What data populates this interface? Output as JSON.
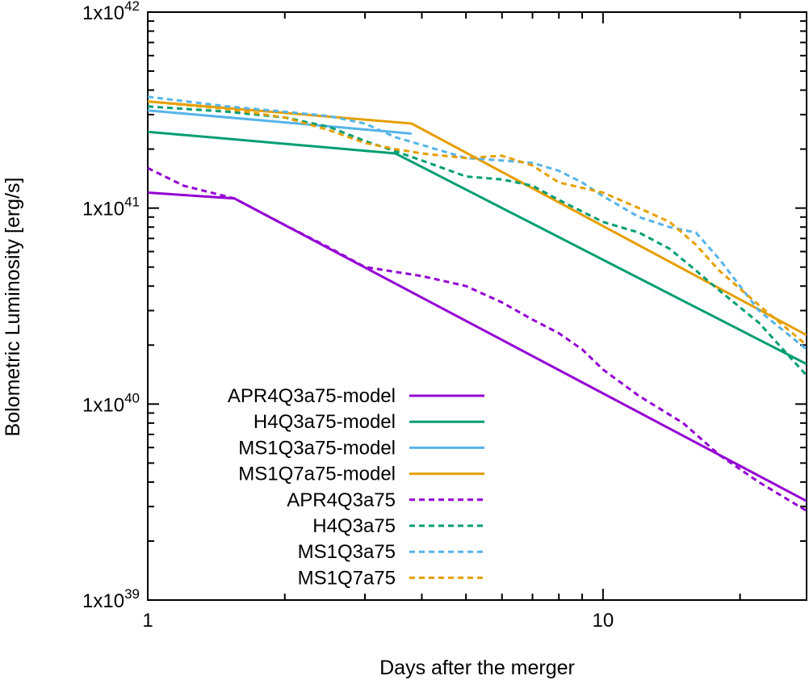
{
  "chart_data": {
    "type": "line",
    "title": "",
    "xlabel": "Days after the merger",
    "ylabel": "Bolometric Luminosity [erg/s]",
    "xscale": "log",
    "yscale": "log",
    "xlim": [
      1,
      28
    ],
    "ylim": [
      1e+39,
      1e+42
    ],
    "x_ticks": [
      {
        "value": 1,
        "label": "1"
      },
      {
        "value": 10,
        "label": "10"
      }
    ],
    "y_ticks": [
      {
        "value": 1e+39,
        "mantissa": "1x10",
        "exp": "39"
      },
      {
        "value": 1e+40,
        "mantissa": "1x10",
        "exp": "40"
      },
      {
        "value": 1e+41,
        "mantissa": "1x10",
        "exp": "41"
      },
      {
        "value": 1e+42,
        "mantissa": "1x10",
        "exp": "42"
      }
    ],
    "grid": false,
    "legend_position": "bottom-left",
    "series": [
      {
        "name": "APR4Q3a75-model",
        "color": "#9400d3",
        "dash": "solid",
        "points": [
          [
            1.0,
            1.2e+41
          ],
          [
            1.55,
            1.12e+41
          ],
          [
            28,
            3.2e+39
          ]
        ]
      },
      {
        "name": "H4Q3a75-model",
        "color": "#009e73",
        "dash": "solid",
        "points": [
          [
            1.0,
            2.45e+41
          ],
          [
            3.5,
            1.9e+41
          ],
          [
            28,
            1.6e+40
          ]
        ]
      },
      {
        "name": "MS1Q3a75-model",
        "color": "#56b4e9",
        "dash": "solid",
        "points": [
          [
            1.0,
            3.15e+41
          ],
          [
            3.8,
            2.4e+41
          ]
        ]
      },
      {
        "name": "MS1Q7a75-model",
        "color": "#e69f00",
        "dash": "solid",
        "points": [
          [
            1.0,
            3.5e+41
          ],
          [
            3.8,
            2.7e+41
          ],
          [
            28,
            2.25e+40
          ]
        ]
      },
      {
        "name": "APR4Q3a75",
        "color": "#9400d3",
        "dash": "dashed",
        "points": [
          [
            1.0,
            1.6e+41
          ],
          [
            1.2,
            1.3e+41
          ],
          [
            1.55,
            1.12e+41
          ],
          [
            2.0,
            8.2e+40
          ],
          [
            2.5,
            6.3e+40
          ],
          [
            3.0,
            5e+40
          ],
          [
            4.0,
            4.5e+40
          ],
          [
            5.0,
            4e+40
          ],
          [
            6.0,
            3.3e+40
          ],
          [
            7.0,
            2.7e+40
          ],
          [
            8.0,
            2.3e+40
          ],
          [
            9.0,
            1.9e+40
          ],
          [
            10.0,
            1.5e+40
          ],
          [
            12.0,
            1.1e+40
          ],
          [
            15.0,
            8e+39
          ],
          [
            18.0,
            5.5e+39
          ],
          [
            22.0,
            4e+39
          ],
          [
            28.0,
            2.85e+39
          ]
        ]
      },
      {
        "name": "H4Q3a75",
        "color": "#009e73",
        "dash": "dashed",
        "points": [
          [
            1.0,
            3.3e+41
          ],
          [
            1.5,
            3.1e+41
          ],
          [
            2.0,
            2.9e+41
          ],
          [
            2.5,
            2.6e+41
          ],
          [
            3.0,
            2.2e+41
          ],
          [
            3.5,
            1.95e+41
          ],
          [
            4.0,
            1.75e+41
          ],
          [
            5.0,
            1.45e+41
          ],
          [
            6.0,
            1.4e+41
          ],
          [
            7.0,
            1.3e+41
          ],
          [
            8.0,
            1.1e+41
          ],
          [
            10.0,
            8.5e+40
          ],
          [
            12.0,
            7.5e+40
          ],
          [
            14.0,
            6.2e+40
          ],
          [
            16.0,
            4.8e+40
          ],
          [
            18.0,
            3.8e+40
          ],
          [
            22.0,
            2.6e+40
          ],
          [
            28.0,
            1.4e+40
          ]
        ]
      },
      {
        "name": "MS1Q3a75",
        "color": "#56b4e9",
        "dash": "dashed",
        "points": [
          [
            1.0,
            3.7e+41
          ],
          [
            1.5,
            3.3e+41
          ],
          [
            2.0,
            3.1e+41
          ],
          [
            2.5,
            2.95e+41
          ],
          [
            3.0,
            2.7e+41
          ],
          [
            3.5,
            2.3e+41
          ],
          [
            4.0,
            2.1e+41
          ],
          [
            5.0,
            1.8e+41
          ],
          [
            6.0,
            1.75e+41
          ],
          [
            7.0,
            1.7e+41
          ],
          [
            8.0,
            1.55e+41
          ],
          [
            9.0,
            1.35e+41
          ],
          [
            10.0,
            1.15e+41
          ],
          [
            12.0,
            9e+40
          ],
          [
            14.0,
            8e+40
          ],
          [
            16.0,
            7.5e+40
          ],
          [
            18.0,
            5.5e+40
          ],
          [
            22.0,
            3e+40
          ],
          [
            28.0,
            1.9e+40
          ]
        ]
      },
      {
        "name": "MS1Q7a75",
        "color": "#e69f00",
        "dash": "dashed",
        "points": [
          [
            1.0,
            3.5e+41
          ],
          [
            1.5,
            3.2e+41
          ],
          [
            2.0,
            2.9e+41
          ],
          [
            2.5,
            2.5e+41
          ],
          [
            3.0,
            2.15e+41
          ],
          [
            3.5,
            2e+41
          ],
          [
            4.0,
            1.9e+41
          ],
          [
            5.0,
            1.8e+41
          ],
          [
            6.0,
            1.85e+41
          ],
          [
            7.0,
            1.65e+41
          ],
          [
            8.0,
            1.35e+41
          ],
          [
            10.0,
            1.2e+41
          ],
          [
            12.0,
            1e+41
          ],
          [
            14.0,
            8.5e+40
          ],
          [
            16.0,
            6.5e+40
          ],
          [
            18.0,
            4.8e+40
          ],
          [
            22.0,
            3.2e+40
          ],
          [
            28.0,
            2e+40
          ]
        ]
      }
    ]
  }
}
